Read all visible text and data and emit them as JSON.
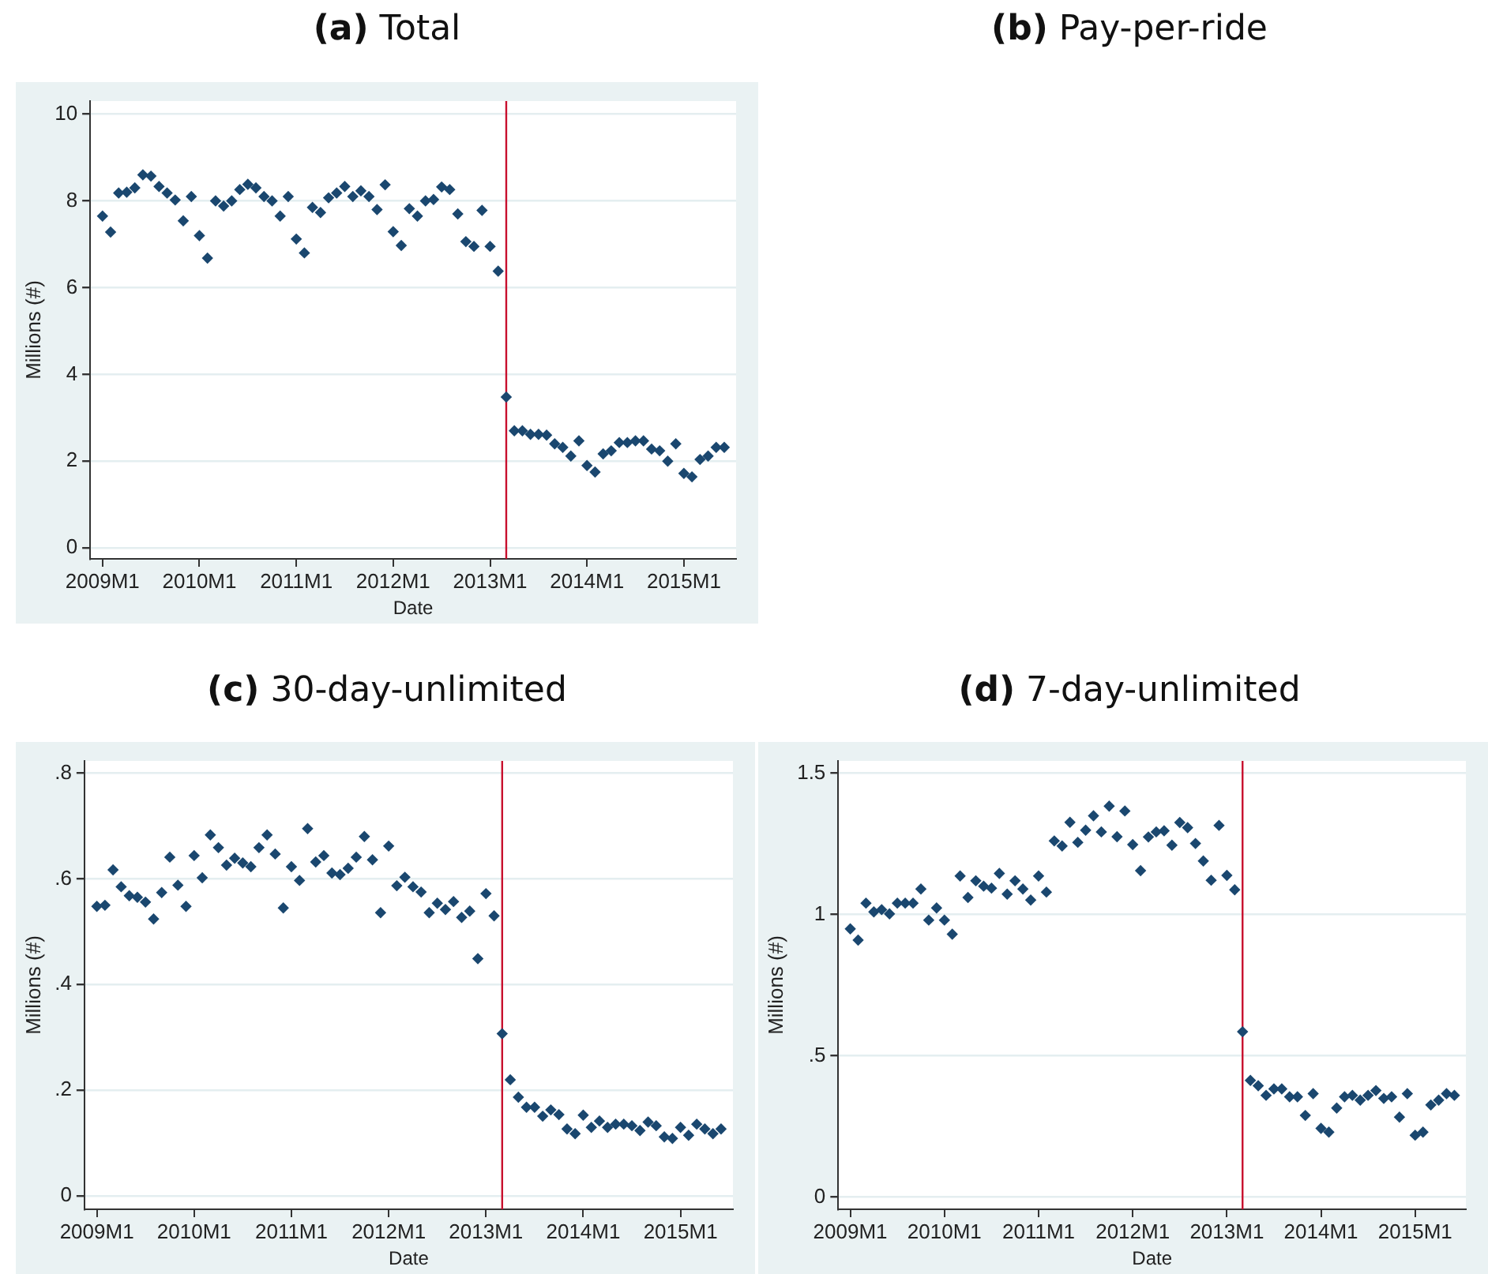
{
  "chart_data": [
    {
      "type": "scatter",
      "title": "(a) Total",
      "xlabel": "Date",
      "ylabel": "Millions (#)",
      "color": "#1a476f",
      "marker": "diamond",
      "grid": "y",
      "x": [
        "2009-01",
        "2009-02",
        "2009-03",
        "2009-04",
        "2009-05",
        "2009-06",
        "2009-07",
        "2009-08",
        "2009-09",
        "2009-10",
        "2009-11",
        "2009-12",
        "2010-01",
        "2010-02",
        "2010-03",
        "2010-04",
        "2010-05",
        "2010-06",
        "2010-07",
        "2010-08",
        "2010-09",
        "2010-10",
        "2010-11",
        "2010-12",
        "2011-01",
        "2011-02",
        "2011-03",
        "2011-04",
        "2011-05",
        "2011-06",
        "2011-07",
        "2011-08",
        "2011-09",
        "2011-10",
        "2011-11",
        "2011-12",
        "2012-01",
        "2012-02",
        "2012-03",
        "2012-04",
        "2012-05",
        "2012-06",
        "2012-07",
        "2012-08",
        "2012-09",
        "2012-10",
        "2012-11",
        "2012-12",
        "2013-01",
        "2013-02",
        "2013-03",
        "2013-04",
        "2013-05",
        "2013-06",
        "2013-07",
        "2013-08",
        "2013-09",
        "2013-10",
        "2013-11",
        "2013-12",
        "2014-01",
        "2014-02",
        "2014-03",
        "2014-04",
        "2014-05",
        "2014-06",
        "2014-07",
        "2014-08",
        "2014-09",
        "2014-10",
        "2014-11",
        "2014-12",
        "2015-01",
        "2015-02",
        "2015-03",
        "2015-04",
        "2015-05",
        "2015-06"
      ],
      "values": [
        7.65,
        7.28,
        8.18,
        8.2,
        8.3,
        8.6,
        8.57,
        8.33,
        8.18,
        8.02,
        7.54,
        8.1,
        7.2,
        6.68,
        8.0,
        7.88,
        8.0,
        8.26,
        8.38,
        8.3,
        8.1,
        8.0,
        7.65,
        8.1,
        7.12,
        6.8,
        7.85,
        7.73,
        8.07,
        8.18,
        8.33,
        8.1,
        8.23,
        8.1,
        7.8,
        8.37,
        7.29,
        6.97,
        7.82,
        7.65,
        8.0,
        8.03,
        8.32,
        8.26,
        7.7,
        7.06,
        6.95,
        7.78,
        6.95,
        6.38,
        3.48,
        2.7,
        2.7,
        2.62,
        2.62,
        2.6,
        2.4,
        2.32,
        2.12,
        2.47,
        1.9,
        1.75,
        2.17,
        2.24,
        2.43,
        2.43,
        2.47,
        2.47,
        2.28,
        2.24,
        2.0,
        2.4,
        1.72,
        1.64,
        2.04,
        2.12,
        2.32,
        2.32
      ],
      "xlim": [
        "2008-11-15",
        "2015-07-15"
      ],
      "xticks": [
        {
          "value": "2009-01",
          "label": "2009M1"
        },
        {
          "value": "2010-01",
          "label": "2010M1"
        },
        {
          "value": "2011-01",
          "label": "2011M1"
        },
        {
          "value": "2012-01",
          "label": "2012M1"
        },
        {
          "value": "2013-01",
          "label": "2013M1"
        },
        {
          "value": "2014-01",
          "label": "2014M1"
        },
        {
          "value": "2015-01",
          "label": "2015M1"
        }
      ],
      "ylim": [
        -0.25,
        10.3
      ],
      "yticks": [
        0,
        2,
        4,
        6,
        8,
        10
      ],
      "ref_lines": [
        {
          "axis": "x",
          "value": "2013-03",
          "color": "#c8102e"
        }
      ]
    },
    {
      "type": "other",
      "title": "(b) Pay-per-ride"
    },
    {
      "type": "scatter",
      "title": "(c) 30-day-unlimited",
      "xlabel": "Date",
      "ylabel": "Millions (#)",
      "color": "#1a476f",
      "marker": "diamond",
      "grid": "y",
      "x": [
        "2009-01",
        "2009-02",
        "2009-03",
        "2009-04",
        "2009-05",
        "2009-06",
        "2009-07",
        "2009-08",
        "2009-09",
        "2009-10",
        "2009-11",
        "2009-12",
        "2010-01",
        "2010-02",
        "2010-03",
        "2010-04",
        "2010-05",
        "2010-06",
        "2010-07",
        "2010-08",
        "2010-09",
        "2010-10",
        "2010-11",
        "2010-12",
        "2011-01",
        "2011-02",
        "2011-03",
        "2011-04",
        "2011-05",
        "2011-06",
        "2011-07",
        "2011-08",
        "2011-09",
        "2011-10",
        "2011-11",
        "2011-12",
        "2012-01",
        "2012-02",
        "2012-03",
        "2012-04",
        "2012-05",
        "2012-06",
        "2012-07",
        "2012-08",
        "2012-09",
        "2012-10",
        "2012-11",
        "2012-12",
        "2013-01",
        "2013-02",
        "2013-03",
        "2013-04",
        "2013-05",
        "2013-06",
        "2013-07",
        "2013-08",
        "2013-09",
        "2013-10",
        "2013-11",
        "2013-12",
        "2014-01",
        "2014-02",
        "2014-03",
        "2014-04",
        "2014-05",
        "2014-06",
        "2014-07",
        "2014-08",
        "2014-09",
        "2014-10",
        "2014-11",
        "2014-12",
        "2015-01",
        "2015-02",
        "2015-03",
        "2015-04",
        "2015-05",
        "2015-06"
      ],
      "values": [
        0.548,
        0.55,
        0.617,
        0.585,
        0.568,
        0.565,
        0.556,
        0.524,
        0.574,
        0.641,
        0.588,
        0.548,
        0.644,
        0.602,
        0.683,
        0.659,
        0.626,
        0.639,
        0.63,
        0.623,
        0.659,
        0.683,
        0.647,
        0.545,
        0.623,
        0.597,
        0.695,
        0.632,
        0.644,
        0.611,
        0.608,
        0.62,
        0.641,
        0.68,
        0.636,
        0.536,
        0.662,
        0.587,
        0.603,
        0.585,
        0.575,
        0.536,
        0.554,
        0.542,
        0.557,
        0.527,
        0.539,
        0.449,
        0.572,
        0.53,
        0.307,
        0.22,
        0.187,
        0.168,
        0.168,
        0.151,
        0.163,
        0.154,
        0.127,
        0.118,
        0.153,
        0.13,
        0.142,
        0.13,
        0.136,
        0.136,
        0.133,
        0.124,
        0.14,
        0.133,
        0.112,
        0.109,
        0.13,
        0.115,
        0.136,
        0.127,
        0.118,
        0.127
      ],
      "xlim": [
        "2008-11-15",
        "2015-07-15"
      ],
      "xticks": [
        {
          "value": "2009-01",
          "label": "2009M1"
        },
        {
          "value": "2010-01",
          "label": "2010M1"
        },
        {
          "value": "2011-01",
          "label": "2011M1"
        },
        {
          "value": "2012-01",
          "label": "2012M1"
        },
        {
          "value": "2013-01",
          "label": "2013M1"
        },
        {
          "value": "2014-01",
          "label": "2014M1"
        },
        {
          "value": "2015-01",
          "label": "2015M1"
        }
      ],
      "ylim": [
        -0.025,
        0.823
      ],
      "yticks": [
        0,
        {
          "value": 0.2,
          "label": ".2"
        },
        {
          "value": 0.4,
          "label": ".4"
        },
        {
          "value": 0.6,
          "label": ".6"
        },
        {
          "value": 0.8,
          "label": ".8"
        }
      ],
      "ref_lines": [
        {
          "axis": "x",
          "value": "2013-03",
          "color": "#c8102e"
        }
      ]
    },
    {
      "type": "scatter",
      "title": "(d) 7-day-unlimited",
      "xlabel": "Date",
      "ylabel": "Millions (#)",
      "color": "#1a476f",
      "marker": "diamond",
      "grid": "y",
      "x": [
        "2009-01",
        "2009-02",
        "2009-03",
        "2009-04",
        "2009-05",
        "2009-06",
        "2009-07",
        "2009-08",
        "2009-09",
        "2009-10",
        "2009-11",
        "2009-12",
        "2010-01",
        "2010-02",
        "2010-03",
        "2010-04",
        "2010-05",
        "2010-06",
        "2010-07",
        "2010-08",
        "2010-09",
        "2010-10",
        "2010-11",
        "2010-12",
        "2011-01",
        "2011-02",
        "2011-03",
        "2011-04",
        "2011-05",
        "2011-06",
        "2011-07",
        "2011-08",
        "2011-09",
        "2011-10",
        "2011-11",
        "2011-12",
        "2012-01",
        "2012-02",
        "2012-03",
        "2012-04",
        "2012-05",
        "2012-06",
        "2012-07",
        "2012-08",
        "2012-09",
        "2012-10",
        "2012-11",
        "2012-12",
        "2013-01",
        "2013-02",
        "2013-03",
        "2013-04",
        "2013-05",
        "2013-06",
        "2013-07",
        "2013-08",
        "2013-09",
        "2013-10",
        "2013-11",
        "2013-12",
        "2014-01",
        "2014-02",
        "2014-03",
        "2014-04",
        "2014-05",
        "2014-06",
        "2014-07",
        "2014-08",
        "2014-09",
        "2014-10",
        "2014-11",
        "2014-12",
        "2015-01",
        "2015-02",
        "2015-03",
        "2015-04",
        "2015-05",
        "2015-06"
      ],
      "values": [
        0.949,
        0.909,
        1.04,
        1.009,
        1.017,
        1.002,
        1.04,
        1.04,
        1.04,
        1.09,
        0.98,
        1.023,
        0.98,
        0.93,
        1.136,
        1.06,
        1.119,
        1.1,
        1.093,
        1.145,
        1.072,
        1.119,
        1.09,
        1.051,
        1.136,
        1.079,
        1.26,
        1.242,
        1.326,
        1.255,
        1.298,
        1.349,
        1.292,
        1.383,
        1.275,
        1.366,
        1.247,
        1.155,
        1.274,
        1.292,
        1.296,
        1.245,
        1.325,
        1.307,
        1.251,
        1.189,
        1.121,
        1.315,
        1.138,
        1.087,
        0.585,
        0.413,
        0.394,
        0.36,
        0.383,
        0.383,
        0.355,
        0.355,
        0.289,
        0.366,
        0.243,
        0.23,
        0.315,
        0.355,
        0.36,
        0.343,
        0.36,
        0.377,
        0.349,
        0.355,
        0.283,
        0.366,
        0.219,
        0.23,
        0.326,
        0.343,
        0.366,
        0.36
      ],
      "xlim": [
        "2008-11-15",
        "2015-07-15"
      ],
      "xticks": [
        {
          "value": "2009-01",
          "label": "2009M1"
        },
        {
          "value": "2010-01",
          "label": "2010M1"
        },
        {
          "value": "2011-01",
          "label": "2011M1"
        },
        {
          "value": "2012-01",
          "label": "2012M1"
        },
        {
          "value": "2013-01",
          "label": "2013M1"
        },
        {
          "value": "2014-01",
          "label": "2014M1"
        },
        {
          "value": "2015-01",
          "label": "2015M1"
        }
      ],
      "ylim": [
        -0.043,
        1.543
      ],
      "yticks": [
        0,
        {
          "value": 0.5,
          "label": ".5"
        },
        1,
        1.5
      ],
      "ref_lines": [
        {
          "axis": "x",
          "value": "2013-03",
          "color": "#c8102e"
        }
      ]
    }
  ]
}
